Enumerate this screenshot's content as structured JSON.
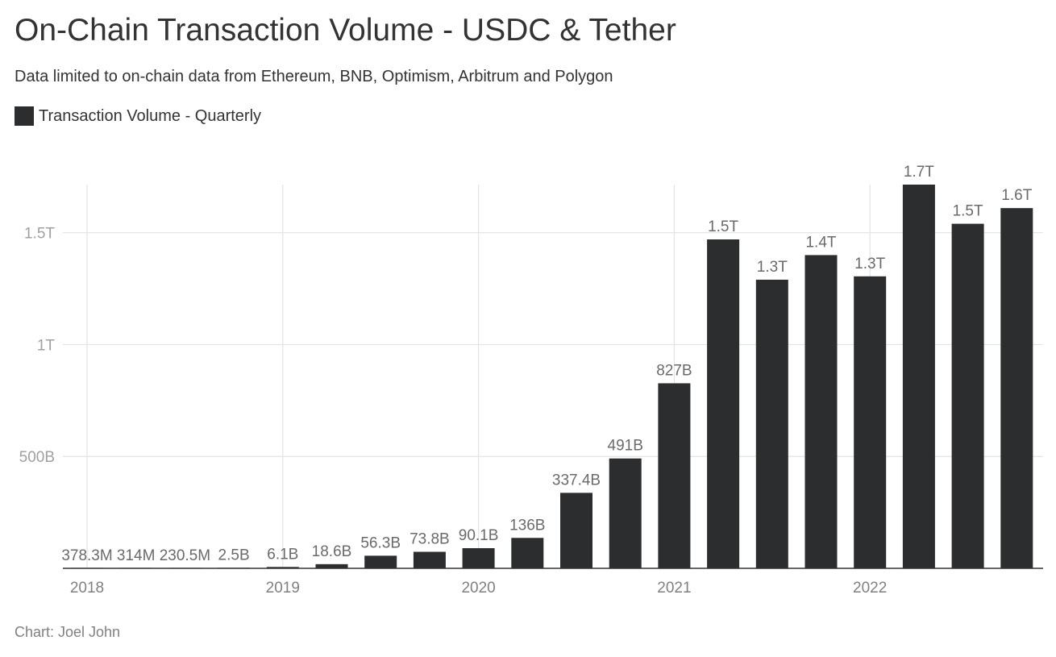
{
  "header": {
    "title": "On-Chain Transaction Volume - USDC & Tether",
    "subtitle": "Data limited to on-chain data from Ethereum, BNB, Optimism, Arbitrum and Polygon"
  },
  "legend": {
    "label": "Transaction Volume - Quarterly",
    "color": "#2b2d2f"
  },
  "footer": {
    "credit": "Chart: Joel John"
  },
  "chart_data": {
    "type": "bar",
    "title": "On-Chain Transaction Volume - USDC & Tether",
    "xlabel": "",
    "ylabel": "",
    "bar_color": "#2b2d2f",
    "categories": [
      "2018 Q1",
      "2018 Q2",
      "2018 Q3",
      "2018 Q4",
      "2019 Q1",
      "2019 Q2",
      "2019 Q3",
      "2019 Q4",
      "2020 Q1",
      "2020 Q2",
      "2020 Q3",
      "2020 Q4",
      "2021 Q1",
      "2021 Q2",
      "2021 Q3",
      "2021 Q4",
      "2022 Q1",
      "2022 Q2",
      "2022 Q3",
      "2022 Q4"
    ],
    "values": [
      0.3783,
      0.314,
      0.2305,
      2.5,
      6.1,
      18.6,
      56.3,
      73.8,
      90.1,
      136,
      337.4,
      491,
      827,
      1470,
      1290,
      1400,
      1305,
      1715,
      1540,
      1610
    ],
    "value_unit": "B",
    "data_labels": [
      "378.3M",
      "314M",
      "230.5M",
      "2.5B",
      "6.1B",
      "18.6B",
      "56.3B",
      "73.8B",
      "90.1B",
      "136B",
      "337.4B",
      "491B",
      "827B",
      "1.5T",
      "1.3T",
      "1.4T",
      "1.3T",
      "1.7T",
      "1.5T",
      "1.6T"
    ],
    "x_tick_labels": [
      "2018",
      "2019",
      "2020",
      "2021",
      "2022"
    ],
    "y_ticks": [
      500,
      1000,
      1500
    ],
    "y_tick_labels": [
      "500B",
      "1T",
      "1.5T"
    ],
    "ylim": [
      0,
      1715
    ],
    "grid": true
  }
}
